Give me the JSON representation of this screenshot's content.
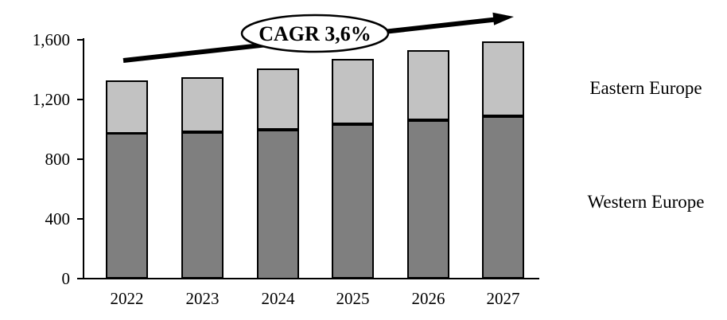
{
  "chart_data": {
    "type": "bar",
    "stacked": true,
    "title": "",
    "categories": [
      "2022",
      "2023",
      "2024",
      "2025",
      "2026",
      "2027"
    ],
    "series": [
      {
        "name": "Western Europe",
        "color": "#7f7f7f",
        "values": [
          975,
          980,
          1000,
          1035,
          1060,
          1090
        ]
      },
      {
        "name": "Eastern Europe",
        "color": "#c2c2c2",
        "values": [
          355,
          370,
          410,
          435,
          470,
          500
        ]
      }
    ],
    "totals": [
      1330,
      1350,
      1410,
      1470,
      1530,
      1590
    ],
    "y_axis": {
      "min": 0,
      "max": 1600,
      "tick_values": [
        0,
        400,
        800,
        1200,
        1600
      ],
      "tick_labels": [
        "0",
        "400",
        "800",
        "1,200",
        "1,600"
      ]
    },
    "grid": false,
    "legend_position": "right-labels",
    "bar_border_color": "#000000",
    "annotation": {
      "label": "CAGR 3,6%",
      "shape": "ellipse",
      "arrow": "up-right"
    }
  }
}
